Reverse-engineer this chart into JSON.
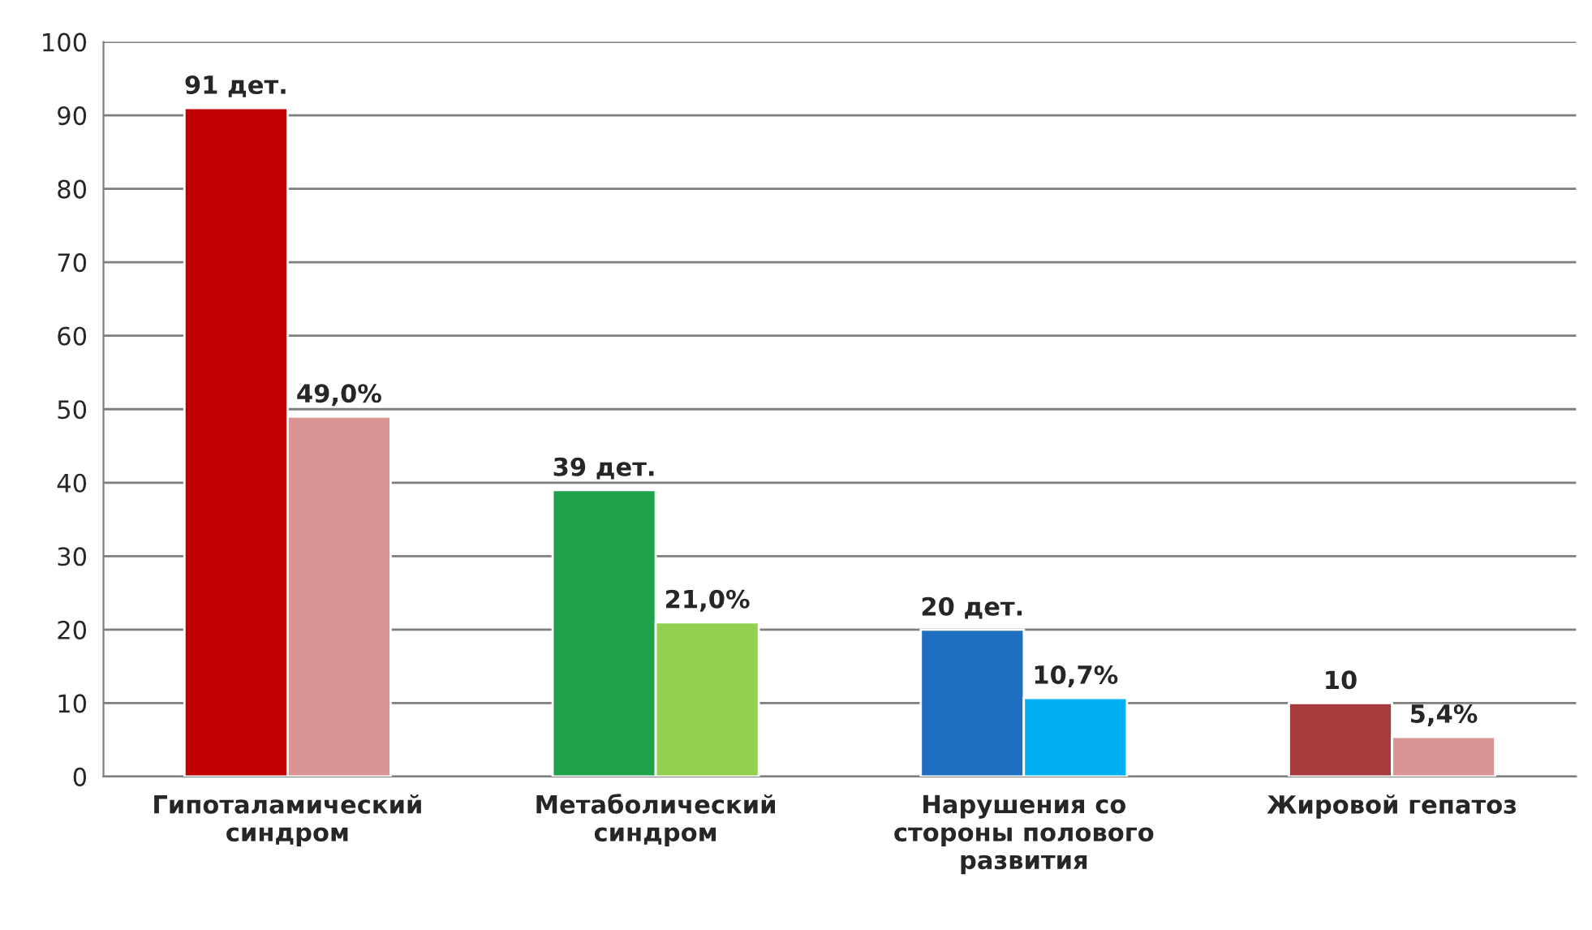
{
  "chart_data": {
    "type": "bar",
    "categories": [
      "Гипоталамический\nсиндром",
      "Метаболический\nсиндром",
      "Нарушения со\nстороны полового\nразвития",
      "Жировой гепатоз"
    ],
    "series": [
      {
        "colors": [
          "#c00000",
          "#1fa34a",
          "#1f6fc1",
          "#a83a3e"
        ],
        "values": [
          91,
          39,
          20,
          10
        ],
        "value_labels": [
          "91 дет.",
          "39 дет.",
          "20 дет.",
          "10"
        ]
      },
      {
        "colors": [
          "#d99594",
          "#92d050",
          "#00b0f0",
          "#d99594"
        ],
        "values": [
          49.0,
          21.0,
          10.7,
          5.4
        ],
        "value_labels": [
          "49,0%",
          "21,0%",
          "10,7%",
          "5,4%"
        ]
      }
    ],
    "ylim": [
      0,
      100
    ],
    "yticks": [
      0,
      10,
      20,
      30,
      40,
      50,
      60,
      70,
      80,
      90,
      100
    ],
    "grid": "y",
    "legend": false
  }
}
